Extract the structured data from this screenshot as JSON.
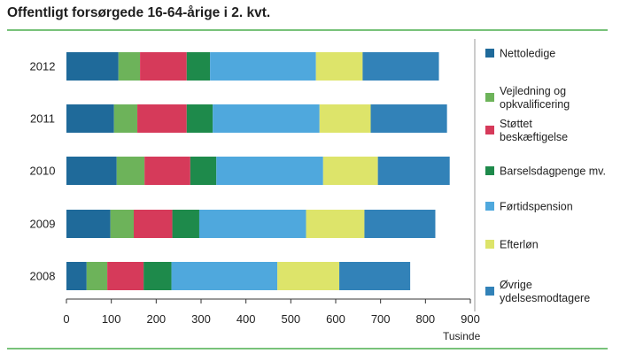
{
  "chart_data": {
    "type": "bar",
    "orientation": "horizontal",
    "stacked": true,
    "title": "Offentligt forsørgede 16-64-årige i 2. kvt.",
    "xlabel": "Tusinde",
    "ylabel": "",
    "xlim": [
      0,
      900
    ],
    "xticks": [
      "0",
      "100",
      "200",
      "300",
      "400",
      "500",
      "600",
      "700",
      "800",
      "900"
    ],
    "categories": [
      "2012",
      "2011",
      "2010",
      "2009",
      "2008"
    ],
    "grid": false,
    "legend_position": "right",
    "series": [
      {
        "name": "Nettoledige",
        "color": "#1f6a9a",
        "values": [
          116,
          106,
          112,
          98,
          45
        ]
      },
      {
        "name": "Vejledning og opkvalificering",
        "color": "#6db35a",
        "values": [
          48,
          52,
          62,
          52,
          46
        ]
      },
      {
        "name": "Støttet beskæftigelse",
        "color": "#d63a5a",
        "values": [
          104,
          110,
          102,
          86,
          81
        ]
      },
      {
        "name": "Barselsdagpenge mv.",
        "color": "#1e8a4b",
        "values": [
          52,
          58,
          58,
          60,
          62
        ]
      },
      {
        "name": "Førtidspension",
        "color": "#4fa8dd",
        "values": [
          236,
          238,
          238,
          238,
          236
        ]
      },
      {
        "name": "Efterløn",
        "color": "#dde46a",
        "values": [
          104,
          114,
          122,
          130,
          138
        ]
      },
      {
        "name": "Øvrige ydelsesmodtagere",
        "color": "#3282b8",
        "values": [
          170,
          170,
          160,
          158,
          158
        ]
      }
    ]
  }
}
